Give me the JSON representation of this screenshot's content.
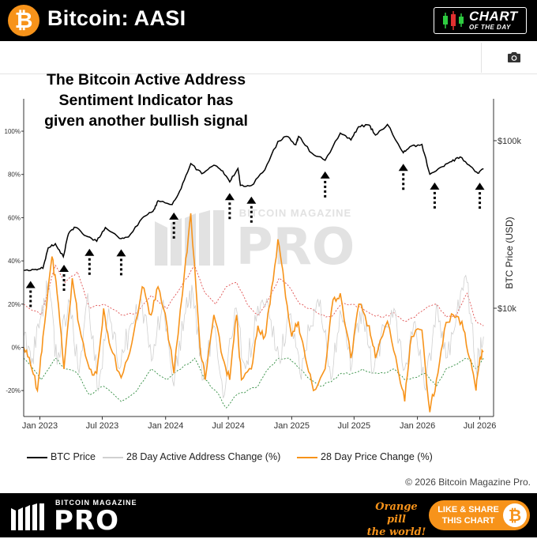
{
  "header": {
    "title": "Bitcoin: AASI",
    "logo_glyph": "₿",
    "badge_line1": "CHART",
    "badge_line2": "OF THE DAY"
  },
  "annotation": [
    "The Bitcoin Active Address",
    "Sentiment Indicator has",
    "given another bullish signal"
  ],
  "watermark": {
    "line1": "BITCOIN MAGAZINE",
    "line2": "PRO"
  },
  "toolbar": {
    "icon": "camera-icon"
  },
  "colors": {
    "btc_price": "#000000",
    "active_address": "#d0d0d0",
    "price_change": "#f7931a",
    "upper_band": "#e05050",
    "lower_band": "#2e8b3e",
    "accent": "#f7931a"
  },
  "chart_data": {
    "type": "line",
    "x_tick_labels": [
      "Jan 2023",
      "Jul 2023",
      "Jan 2024",
      "Jul 2024",
      "Jan 2025",
      "Jul 2025",
      "Jan 2026",
      "Jul 2026"
    ],
    "x_tick_dates": [
      "2023-01-01",
      "2023-07-01",
      "2024-01-01",
      "2024-07-01",
      "2025-01-01",
      "2025-07-01",
      "2026-01-01",
      "2026-07-01"
    ],
    "xlim": [
      "2022-11-15",
      "2026-08-10"
    ],
    "left_axis": {
      "label": "",
      "tick_labels": [
        "100%",
        "80%",
        "60%",
        "40%",
        "20%",
        "0%",
        "-20%"
      ],
      "ticks": [
        100,
        80,
        60,
        40,
        20,
        0,
        -20
      ],
      "ylim": [
        -32,
        115
      ]
    },
    "right_axis": {
      "label": "BTC Price (USD)",
      "scale": "log",
      "tick_labels": [
        "$100k",
        "$10k"
      ],
      "ticks": [
        100000,
        10000
      ]
    },
    "grid": false,
    "legend_position": "bottom",
    "series": [
      {
        "name": "BTC Price",
        "axis": "right",
        "points": [
          [
            "2022-11-15",
            16800
          ],
          [
            "2022-12-15",
            17000
          ],
          [
            "2023-01-10",
            17300
          ],
          [
            "2023-01-25",
            22900
          ],
          [
            "2023-02-15",
            24300
          ],
          [
            "2023-03-10",
            20300
          ],
          [
            "2023-03-25",
            27800
          ],
          [
            "2023-04-14",
            30400
          ],
          [
            "2023-05-15",
            27000
          ],
          [
            "2023-06-15",
            25100
          ],
          [
            "2023-07-10",
            30300
          ],
          [
            "2023-08-20",
            26100
          ],
          [
            "2023-09-15",
            26600
          ],
          [
            "2023-10-25",
            34500
          ],
          [
            "2023-11-25",
            37800
          ],
          [
            "2023-12-10",
            43800
          ],
          [
            "2024-01-20",
            41600
          ],
          [
            "2024-02-15",
            51800
          ],
          [
            "2024-03-14",
            73000
          ],
          [
            "2024-04-15",
            63500
          ],
          [
            "2024-05-20",
            71400
          ],
          [
            "2024-06-15",
            66000
          ],
          [
            "2024-07-05",
            56700
          ],
          [
            "2024-07-29",
            68200
          ],
          [
            "2024-08-05",
            54000
          ],
          [
            "2024-09-06",
            54000
          ],
          [
            "2024-10-15",
            67000
          ],
          [
            "2024-11-22",
            98900
          ],
          [
            "2024-12-17",
            106100
          ],
          [
            "2025-01-13",
            94500
          ],
          [
            "2025-01-21",
            106000
          ],
          [
            "2025-02-28",
            84400
          ],
          [
            "2025-04-08",
            76300
          ],
          [
            "2025-05-22",
            111000
          ],
          [
            "2025-06-22",
            101000
          ],
          [
            "2025-07-14",
            121000
          ],
          [
            "2025-08-14",
            124000
          ],
          [
            "2025-09-01",
            108000
          ],
          [
            "2025-10-06",
            125000
          ],
          [
            "2025-11-21",
            84700
          ],
          [
            "2025-12-10",
            92000
          ],
          [
            "2026-01-14",
            95000
          ],
          [
            "2026-02-06",
            63000
          ],
          [
            "2026-03-15",
            70000
          ],
          [
            "2026-04-10",
            75000
          ],
          [
            "2026-05-05",
            80000
          ],
          [
            "2026-06-05",
            70000
          ],
          [
            "2026-06-25",
            64000
          ],
          [
            "2026-07-12",
            68000
          ]
        ]
      },
      {
        "name": "28 Day Active Address Change (%)",
        "axis": "left",
        "points": [
          [
            "2022-11-15",
            5
          ],
          [
            "2022-12-10",
            -5
          ],
          [
            "2023-01-05",
            15
          ],
          [
            "2023-01-25",
            30
          ],
          [
            "2023-02-20",
            -8
          ],
          [
            "2023-03-25",
            22
          ],
          [
            "2023-04-25",
            -12
          ],
          [
            "2023-05-20",
            25
          ],
          [
            "2023-06-20",
            -20
          ],
          [
            "2023-07-20",
            18
          ],
          [
            "2023-08-20",
            -10
          ],
          [
            "2023-09-20",
            10
          ],
          [
            "2023-10-25",
            20
          ],
          [
            "2023-11-25",
            -5
          ],
          [
            "2023-12-25",
            22
          ],
          [
            "2024-01-25",
            -18
          ],
          [
            "2024-02-25",
            15
          ],
          [
            "2024-03-20",
            25
          ],
          [
            "2024-04-20",
            -15
          ],
          [
            "2024-05-20",
            10
          ],
          [
            "2024-06-20",
            -22
          ],
          [
            "2024-07-20",
            18
          ],
          [
            "2024-08-20",
            -10
          ],
          [
            "2024-09-20",
            12
          ],
          [
            "2024-10-25",
            20
          ],
          [
            "2024-11-25",
            -5
          ],
          [
            "2024-12-25",
            15
          ],
          [
            "2025-01-25",
            -12
          ],
          [
            "2025-02-25",
            10
          ],
          [
            "2025-03-25",
            22
          ],
          [
            "2025-04-25",
            -15
          ],
          [
            "2025-05-25",
            15
          ],
          [
            "2025-06-25",
            -8
          ],
          [
            "2025-07-25",
            20
          ],
          [
            "2025-08-25",
            -12
          ],
          [
            "2025-09-25",
            10
          ],
          [
            "2025-10-25",
            18
          ],
          [
            "2025-11-25",
            -10
          ],
          [
            "2025-12-25",
            12
          ],
          [
            "2026-01-25",
            -20
          ],
          [
            "2026-02-25",
            20
          ],
          [
            "2026-03-25",
            -5
          ],
          [
            "2026-04-25",
            15
          ],
          [
            "2026-05-25",
            30
          ],
          [
            "2026-06-20",
            -10
          ],
          [
            "2026-07-12",
            5
          ]
        ]
      },
      {
        "name": "28 Day Price Change (%)",
        "axis": "left",
        "points": [
          [
            "2022-11-15",
            0
          ],
          [
            "2022-12-05",
            -8
          ],
          [
            "2022-12-25",
            -20
          ],
          [
            "2023-01-10",
            5
          ],
          [
            "2023-02-05",
            42
          ],
          [
            "2023-02-20",
            25
          ],
          [
            "2023-03-12",
            -10
          ],
          [
            "2023-04-05",
            32
          ],
          [
            "2023-04-25",
            10
          ],
          [
            "2023-05-25",
            -10
          ],
          [
            "2023-06-15",
            -12
          ],
          [
            "2023-07-05",
            18
          ],
          [
            "2023-07-25",
            0
          ],
          [
            "2023-08-25",
            -14
          ],
          [
            "2023-09-25",
            2
          ],
          [
            "2023-10-25",
            28
          ],
          [
            "2023-11-20",
            15
          ],
          [
            "2023-12-10",
            28
          ],
          [
            "2024-01-05",
            10
          ],
          [
            "2024-01-25",
            -12
          ],
          [
            "2024-02-25",
            35
          ],
          [
            "2024-03-14",
            62
          ],
          [
            "2024-04-10",
            0
          ],
          [
            "2024-04-25",
            -15
          ],
          [
            "2024-05-20",
            15
          ],
          [
            "2024-06-15",
            -5
          ],
          [
            "2024-07-05",
            -15
          ],
          [
            "2024-07-25",
            15
          ],
          [
            "2024-08-08",
            -15
          ],
          [
            "2024-09-06",
            -10
          ],
          [
            "2024-09-25",
            10
          ],
          [
            "2024-10-15",
            5
          ],
          [
            "2024-10-30",
            20
          ],
          [
            "2024-11-22",
            50
          ],
          [
            "2024-12-10",
            30
          ],
          [
            "2025-01-01",
            5
          ],
          [
            "2025-01-20",
            12
          ],
          [
            "2025-02-10",
            -5
          ],
          [
            "2025-03-05",
            -20
          ],
          [
            "2025-04-08",
            -10
          ],
          [
            "2025-05-01",
            22
          ],
          [
            "2025-05-22",
            25
          ],
          [
            "2025-06-22",
            -5
          ],
          [
            "2025-07-15",
            20
          ],
          [
            "2025-08-14",
            10
          ],
          [
            "2025-09-01",
            -5
          ],
          [
            "2025-10-06",
            12
          ],
          [
            "2025-11-05",
            -10
          ],
          [
            "2025-11-25",
            -25
          ],
          [
            "2025-12-15",
            5
          ],
          [
            "2026-01-14",
            8
          ],
          [
            "2026-02-06",
            -30
          ],
          [
            "2026-02-25",
            -15
          ],
          [
            "2026-03-20",
            8
          ],
          [
            "2026-04-15",
            15
          ],
          [
            "2026-05-10",
            12
          ],
          [
            "2026-06-01",
            -5
          ],
          [
            "2026-06-20",
            -20
          ],
          [
            "2026-07-01",
            -5
          ],
          [
            "2026-07-12",
            -2
          ]
        ]
      }
    ],
    "bands": [
      {
        "axis": "left",
        "points": [
          [
            "2022-11-15",
            20
          ],
          [
            "2023-01-05",
            15
          ],
          [
            "2023-02-15",
            38
          ],
          [
            "2023-03-15",
            30
          ],
          [
            "2023-04-20",
            35
          ],
          [
            "2023-05-25",
            18
          ],
          [
            "2023-07-05",
            20
          ],
          [
            "2023-08-25",
            15
          ],
          [
            "2023-10-10",
            16
          ],
          [
            "2023-11-20",
            24
          ],
          [
            "2024-01-05",
            18
          ],
          [
            "2024-02-15",
            28
          ],
          [
            "2024-03-25",
            38
          ],
          [
            "2024-04-25",
            25
          ],
          [
            "2024-05-25",
            20
          ],
          [
            "2024-06-25",
            28
          ],
          [
            "2024-07-25",
            30
          ],
          [
            "2024-08-25",
            20
          ],
          [
            "2024-09-25",
            15
          ],
          [
            "2024-10-25",
            22
          ],
          [
            "2024-11-25",
            32
          ],
          [
            "2024-12-25",
            28
          ],
          [
            "2025-01-25",
            20
          ],
          [
            "2025-02-25",
            18
          ],
          [
            "2025-03-25",
            15
          ],
          [
            "2025-04-25",
            14
          ],
          [
            "2025-05-25",
            20
          ],
          [
            "2025-06-25",
            20
          ],
          [
            "2025-07-25",
            18
          ],
          [
            "2025-08-25",
            15
          ],
          [
            "2025-09-25",
            14
          ],
          [
            "2025-10-25",
            16
          ],
          [
            "2025-11-25",
            12
          ],
          [
            "2025-12-25",
            14
          ],
          [
            "2026-01-25",
            18
          ],
          [
            "2026-02-25",
            20
          ],
          [
            "2026-03-25",
            14
          ],
          [
            "2026-04-25",
            15
          ],
          [
            "2026-05-25",
            25
          ],
          [
            "2026-06-20",
            12
          ],
          [
            "2026-07-12",
            10
          ]
        ]
      },
      {
        "axis": "left",
        "points": [
          [
            "2022-11-15",
            -5
          ],
          [
            "2023-01-05",
            -15
          ],
          [
            "2023-02-15",
            -5
          ],
          [
            "2023-03-15",
            -10
          ],
          [
            "2023-04-20",
            -12
          ],
          [
            "2023-05-25",
            -22
          ],
          [
            "2023-07-05",
            -18
          ],
          [
            "2023-08-25",
            -25
          ],
          [
            "2023-10-10",
            -20
          ],
          [
            "2023-11-20",
            -10
          ],
          [
            "2024-01-05",
            -15
          ],
          [
            "2024-02-15",
            -10
          ],
          [
            "2024-03-25",
            -5
          ],
          [
            "2024-04-25",
            -15
          ],
          [
            "2024-05-25",
            -20
          ],
          [
            "2024-06-25",
            -28
          ],
          [
            "2024-07-25",
            -22
          ],
          [
            "2024-08-25",
            -20
          ],
          [
            "2024-09-25",
            -18
          ],
          [
            "2024-10-25",
            -10
          ],
          [
            "2024-11-25",
            -5
          ],
          [
            "2024-12-25",
            -5
          ],
          [
            "2025-01-25",
            -10
          ],
          [
            "2025-02-25",
            -15
          ],
          [
            "2025-03-25",
            -18
          ],
          [
            "2025-04-25",
            -16
          ],
          [
            "2025-05-25",
            -12
          ],
          [
            "2025-06-25",
            -12
          ],
          [
            "2025-07-25",
            -10
          ],
          [
            "2025-08-25",
            -12
          ],
          [
            "2025-09-25",
            -12
          ],
          [
            "2025-10-25",
            -10
          ],
          [
            "2025-11-25",
            -15
          ],
          [
            "2025-12-25",
            -14
          ],
          [
            "2026-01-25",
            -12
          ],
          [
            "2026-02-25",
            -18
          ],
          [
            "2026-03-25",
            -10
          ],
          [
            "2026-04-25",
            -8
          ],
          [
            "2026-05-25",
            -5
          ],
          [
            "2026-06-20",
            -10
          ],
          [
            "2026-07-12",
            -5
          ]
        ]
      }
    ],
    "signal_arrows": [
      "2022-12-05",
      "2023-03-12",
      "2023-05-25",
      "2023-08-25",
      "2024-01-25",
      "2024-07-05",
      "2024-09-06",
      "2025-04-08",
      "2025-11-21",
      "2026-02-20",
      "2026-07-01"
    ]
  },
  "legend": [
    {
      "label": "BTC Price",
      "color": "#000000"
    },
    {
      "label": "28 Day Active Address Change (%)",
      "color": "#d0d0d0"
    },
    {
      "label": "28 Day Price Change (%)",
      "color": "#f7931a"
    }
  ],
  "copyright": "© 2026 Bitcoin Magazine Pro.",
  "footer": {
    "brand_small": "BITCOIN MAGAZINE",
    "brand_big": "PRO",
    "tagline_line1": "Orange pill",
    "tagline_line2": "the world!",
    "share_line1": "LIKE & SHARE",
    "share_line2": "THIS CHART",
    "coin_glyph": "₿"
  }
}
